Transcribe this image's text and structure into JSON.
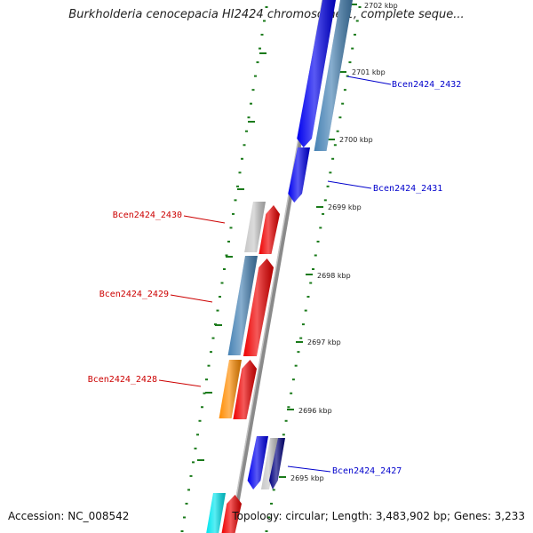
{
  "title": "Burkholderia cenocepacia HI2424 chromosome 1, complete seque...",
  "accession": "Accession: NC_008542",
  "summary": "Topology: circular; Length: 3,483,902 bp; Genes: 3,233",
  "colors": {
    "backbone": "#8a8a8a",
    "tick": "#1a7a1a",
    "forward_label": "#cc0000",
    "reverse_label": "#0000cc",
    "gene_red": "#ee0000",
    "gene_blue": "#0000ee",
    "gene_steel": "#4682b4",
    "gene_gray": "#c8c8c8",
    "gene_orange": "#ff8c00",
    "gene_navy": "#000080",
    "gene_cyan": "#00e5ee"
  },
  "scale": [
    "2702 kbp",
    "2701 kbp",
    "2700 kbp",
    "2699 kbp",
    "2698 kbp",
    "2697 kbp",
    "2696 kbp",
    "2695 kbp"
  ],
  "gene_labels": [
    {
      "text": "Bcen2424_2432",
      "strand": "reverse"
    },
    {
      "text": "Bcen2424_2431",
      "strand": "reverse"
    },
    {
      "text": "Bcen2424_2430",
      "strand": "forward"
    },
    {
      "text": "Bcen2424_2429",
      "strand": "forward"
    },
    {
      "text": "Bcen2424_2428",
      "strand": "forward"
    },
    {
      "text": "Bcen2424_2427",
      "strand": "reverse"
    }
  ]
}
